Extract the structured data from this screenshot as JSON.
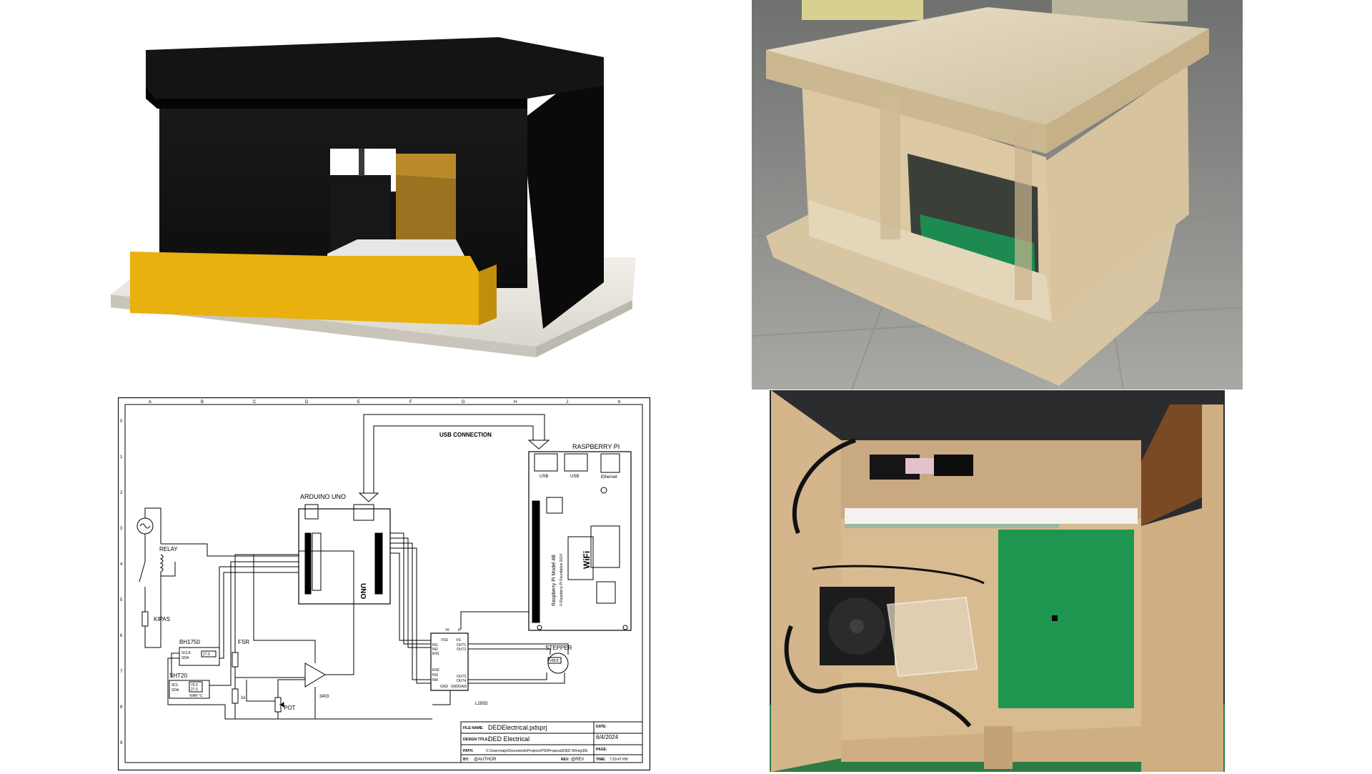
{
  "schematic": {
    "title_usb": "USB CONNECTION",
    "raspberry_pi": "RASPBERRY PI",
    "usb_a": "USB",
    "usb_b": "USB",
    "ethernet": "Ethernet",
    "rpi_model": "Raspberry Pi Model 4B",
    "rpi_foundation": "© Raspberry Pi Foundation 2014",
    "wifi": "WiFi",
    "arduino_uno": "ARDUINO UNO",
    "arduino_brand": "UNO",
    "relay": "RELAY",
    "kipas": "KIPAS",
    "bh1750": "BH1750",
    "bh_scl": "SCLK",
    "bh_sda": "SDA",
    "bh_value": "27.0",
    "sht20": "SHT20",
    "sht_scl": "SCL",
    "sht_sda": "SDA",
    "sht_v1": "76.0",
    "sht_v2": "27.0",
    "sht_units": "%RH  °C",
    "fsr": "FSR",
    "pot": "POT",
    "resistor": "1k",
    "opamp": "3403",
    "driver": "L293D",
    "stepper": "STEPPER",
    "stepper_val": "+88.8",
    "drv_vss": "VSS",
    "drv_vs": "VS",
    "drv_out1": "OUT1",
    "drv_out2": "OUT2",
    "drv_out3": "OUT3",
    "drv_out4": "OUT4",
    "drv_in1": "IN1",
    "drv_in2": "IN2",
    "drv_en1": "EN1",
    "drv_en2": "EN2",
    "drv_in3": "IN3",
    "drv_in4": "IN4",
    "drv_gnd1": "GND",
    "drv_gnd2": "GND",
    "drv_gnd3": "GND",
    "pin16": "16",
    "pin8": "8",
    "tb_file_label": "FILE NAME:",
    "tb_file": "DEDElectrical.pdsprj",
    "tb_title_label": "DESIGN TITLE:",
    "tb_title": "DED Electrical",
    "tb_path_label": "PATH:",
    "tb_path": "C:\\Users\\rajis\\Documents\\Projects\\PSI\\Proposal\\DED Wiring\\DE",
    "tb_by_label": "BY:",
    "tb_by": "@AUTHOR",
    "tb_rev_label": "REV:",
    "tb_rev": "@REV",
    "tb_date_label": "DATE:",
    "tb_date": "6/4/2024",
    "tb_page_label": "PAGE:",
    "tb_time_label": "TIME:",
    "tb_time": "7:29:47 PM",
    "cols": [
      "A",
      "B",
      "C",
      "D",
      "E",
      "F",
      "G",
      "H",
      "J",
      "K"
    ],
    "rows": [
      "0",
      "1",
      "2",
      "3",
      "4",
      "5",
      "6",
      "7",
      "8",
      "9"
    ]
  },
  "colors": {
    "box_black": "#121212",
    "box_yellow": "#e8b10f",
    "wood": "#dccaa8",
    "green_board": "#1f9650"
  }
}
